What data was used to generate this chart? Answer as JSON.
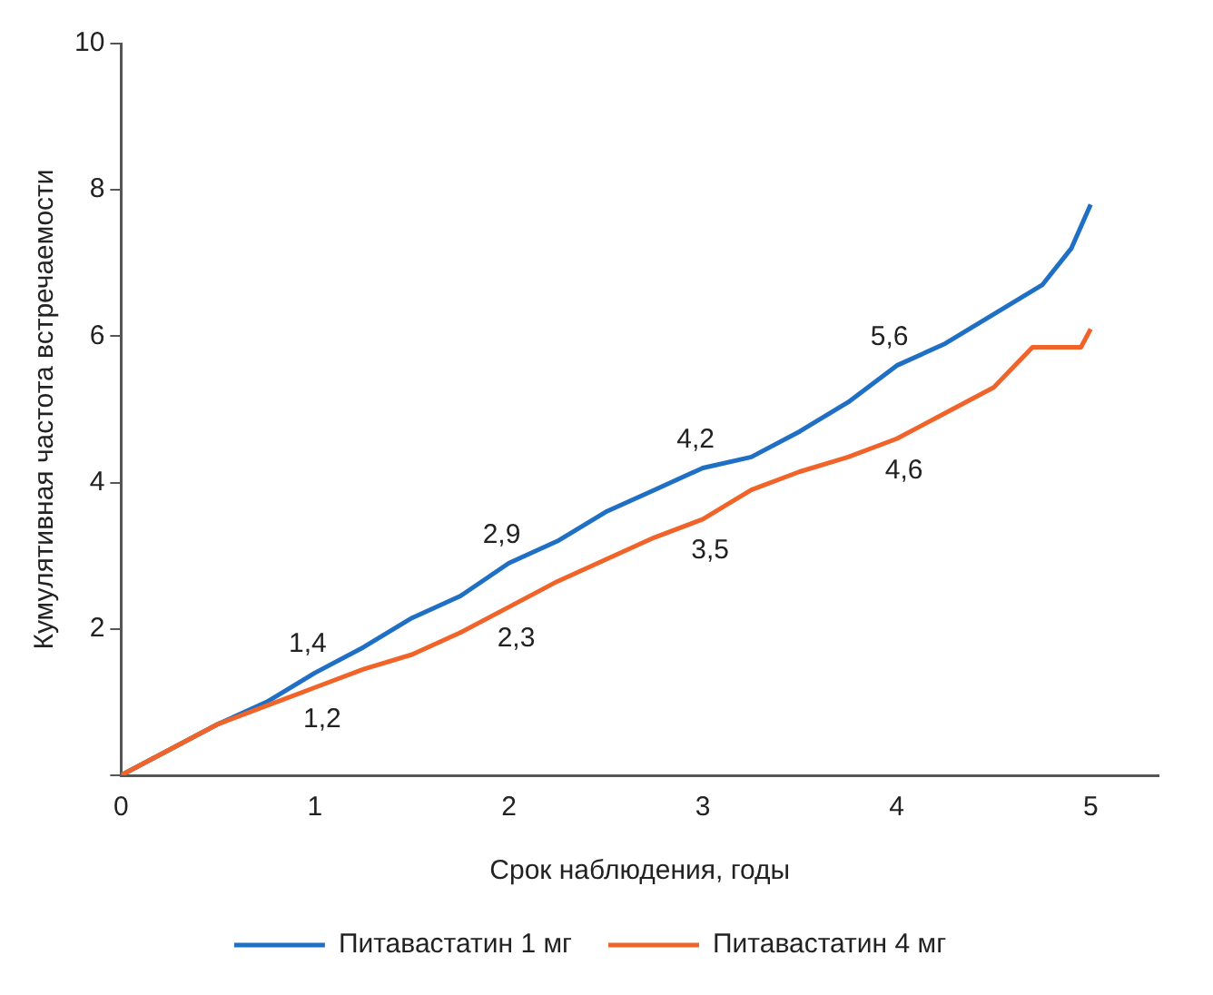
{
  "chart_data": {
    "type": "line",
    "xlabel": "Срок наблюдения, годы",
    "ylabel": "Кумулятивная частота встречаемости",
    "xlim": [
      0,
      5.35
    ],
    "xticks": [
      0,
      1,
      2,
      3,
      4,
      5
    ],
    "ylim": [
      0,
      10
    ],
    "yticks": [
      {
        "value": 0,
        "label": null
      },
      2,
      4,
      6,
      8,
      10
    ],
    "grid": false,
    "legend": "bottom",
    "marker": "none",
    "series": [
      {
        "name": "Питавастатин 1 мг",
        "color": "#1f6fc5",
        "x": [
          0,
          0.25,
          0.5,
          0.75,
          1,
          1.25,
          1.5,
          1.75,
          2,
          2.25,
          2.5,
          2.75,
          3,
          3.25,
          3.5,
          3.75,
          4,
          4.25,
          4.5,
          4.75,
          4.9,
          5
        ],
        "values": [
          0,
          0.35,
          0.7,
          1.0,
          1.4,
          1.75,
          2.15,
          2.45,
          2.9,
          3.2,
          3.6,
          3.9,
          4.2,
          4.35,
          4.7,
          5.1,
          5.6,
          5.9,
          6.3,
          6.7,
          7.2,
          7.8
        ]
      },
      {
        "name": "Питавастатин 4 мг",
        "color": "#f0642a",
        "x": [
          0,
          0.25,
          0.5,
          0.75,
          1,
          1.25,
          1.5,
          1.75,
          2,
          2.25,
          2.5,
          2.75,
          3,
          3.25,
          3.5,
          3.75,
          4,
          4.25,
          4.5,
          4.7,
          4.95,
          5
        ],
        "values": [
          0,
          0.35,
          0.7,
          0.95,
          1.2,
          1.45,
          1.65,
          1.95,
          2.3,
          2.65,
          2.95,
          3.25,
          3.5,
          3.9,
          4.15,
          4.35,
          4.6,
          4.95,
          5.3,
          5.85,
          5.85,
          6.1
        ]
      }
    ],
    "annotations": [
      {
        "text": "1,4",
        "x": 1,
        "y": 1.4
      },
      {
        "text": "2,9",
        "x": 2,
        "y": 2.9
      },
      {
        "text": "4,2",
        "x": 3,
        "y": 4.2
      },
      {
        "text": "5,6",
        "x": 4,
        "y": 5.6
      },
      {
        "text": "1,2",
        "x": 1,
        "y": 1.2
      },
      {
        "text": "2,3",
        "x": 2,
        "y": 2.3
      },
      {
        "text": "3,5",
        "x": 3,
        "y": 3.5
      },
      {
        "text": "4,6",
        "x": 4,
        "y": 4.6
      }
    ]
  }
}
